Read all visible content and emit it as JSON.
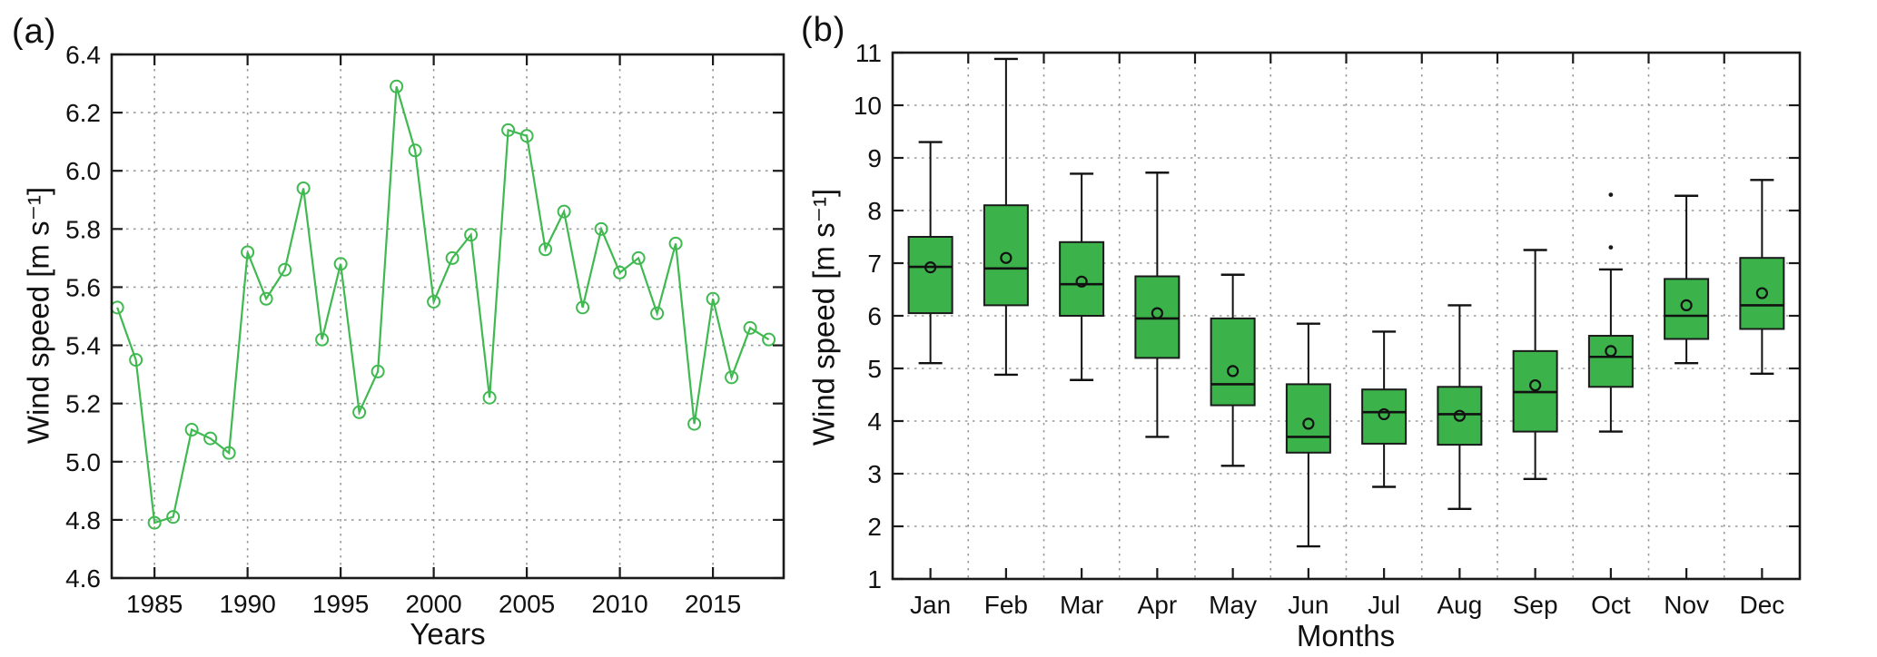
{
  "figure": {
    "background": "#ffffff"
  },
  "panels": {
    "a": {
      "label": "(a)",
      "xlabel": "Years",
      "ylabel": "Wind speed [m s⁻¹]"
    },
    "b": {
      "label": "(b)",
      "xlabel": "Months",
      "ylabel": "Wind speed [m s⁻¹]"
    }
  },
  "chart_data": [
    {
      "type": "line",
      "panel": "a",
      "title": "",
      "xlabel": "Years",
      "ylabel": "Wind speed [m s⁻¹]",
      "x": [
        1983,
        1984,
        1985,
        1986,
        1987,
        1988,
        1989,
        1990,
        1991,
        1992,
        1993,
        1994,
        1995,
        1996,
        1997,
        1998,
        1999,
        2000,
        2001,
        2002,
        2003,
        2004,
        2005,
        2006,
        2007,
        2008,
        2009,
        2010,
        2011,
        2012,
        2013,
        2014,
        2015,
        2016,
        2017,
        2018
      ],
      "values": [
        5.53,
        5.35,
        4.79,
        4.81,
        5.11,
        5.08,
        5.03,
        5.72,
        5.56,
        5.66,
        5.94,
        5.42,
        5.68,
        5.17,
        5.31,
        6.29,
        6.07,
        5.55,
        5.7,
        5.78,
        5.22,
        6.14,
        6.12,
        5.73,
        5.86,
        5.53,
        5.8,
        5.65,
        5.7,
        5.51,
        5.75,
        5.13,
        5.56,
        5.29,
        5.46,
        5.42
      ],
      "xlim": [
        1982.7,
        2018.8
      ],
      "ylim": [
        4.6,
        6.4
      ],
      "xticks": [
        1985,
        1990,
        1995,
        2000,
        2005,
        2010,
        2015
      ],
      "yticks": [
        4.6,
        4.8,
        5.0,
        5.2,
        5.4,
        5.6,
        5.8,
        6.0,
        6.2,
        6.4
      ],
      "ytick_decimals": 1,
      "grid": true,
      "legend": "none",
      "line_color": "#3fb950",
      "marker": "open-circle",
      "marker_color": "#3fb950"
    },
    {
      "type": "box",
      "panel": "b",
      "title": "",
      "xlabel": "Months",
      "ylabel": "Wind speed [m s⁻¹]",
      "categories": [
        "Jan",
        "Feb",
        "Mar",
        "Apr",
        "May",
        "Jun",
        "Jul",
        "Aug",
        "Sep",
        "Oct",
        "Nov",
        "Dec"
      ],
      "boxes": [
        {
          "label": "Jan",
          "whisker_low": 5.1,
          "q1": 6.05,
          "median": 6.93,
          "mean": 6.92,
          "q3": 7.5,
          "whisker_high": 9.3,
          "outliers": []
        },
        {
          "label": "Feb",
          "whisker_low": 4.88,
          "q1": 6.2,
          "median": 6.9,
          "mean": 7.1,
          "q3": 8.1,
          "whisker_high": 10.88,
          "outliers": []
        },
        {
          "label": "Mar",
          "whisker_low": 4.78,
          "q1": 6.0,
          "median": 6.6,
          "mean": 6.65,
          "q3": 7.4,
          "whisker_high": 8.7,
          "outliers": []
        },
        {
          "label": "Apr",
          "whisker_low": 3.7,
          "q1": 5.2,
          "median": 5.95,
          "mean": 6.05,
          "q3": 6.75,
          "whisker_high": 8.72,
          "outliers": []
        },
        {
          "label": "May",
          "whisker_low": 3.15,
          "q1": 4.3,
          "median": 4.7,
          "mean": 4.95,
          "q3": 5.95,
          "whisker_high": 6.78,
          "outliers": []
        },
        {
          "label": "Jun",
          "whisker_low": 1.62,
          "q1": 3.4,
          "median": 3.7,
          "mean": 3.95,
          "q3": 4.7,
          "whisker_high": 5.85,
          "outliers": []
        },
        {
          "label": "Jul",
          "whisker_low": 2.75,
          "q1": 3.57,
          "median": 4.17,
          "mean": 4.13,
          "q3": 4.6,
          "whisker_high": 5.7,
          "outliers": []
        },
        {
          "label": "Aug",
          "whisker_low": 2.33,
          "q1": 3.55,
          "median": 4.13,
          "mean": 4.1,
          "q3": 4.65,
          "whisker_high": 6.2,
          "outliers": []
        },
        {
          "label": "Sep",
          "whisker_low": 2.9,
          "q1": 3.8,
          "median": 4.55,
          "mean": 4.68,
          "q3": 5.33,
          "whisker_high": 7.25,
          "outliers": []
        },
        {
          "label": "Oct",
          "whisker_low": 3.8,
          "q1": 4.65,
          "median": 5.22,
          "mean": 5.33,
          "q3": 5.62,
          "whisker_high": 6.88,
          "outliers": [
            7.3,
            8.3
          ]
        },
        {
          "label": "Nov",
          "whisker_low": 5.1,
          "q1": 5.56,
          "median": 6.0,
          "mean": 6.2,
          "q3": 6.7,
          "whisker_high": 8.28,
          "outliers": []
        },
        {
          "label": "Dec",
          "whisker_low": 4.9,
          "q1": 5.75,
          "median": 6.2,
          "mean": 6.43,
          "q3": 7.1,
          "whisker_high": 8.58,
          "outliers": []
        }
      ],
      "ylim": [
        1,
        11
      ],
      "yticks": [
        1,
        2,
        3,
        4,
        5,
        6,
        7,
        8,
        9,
        10,
        11
      ],
      "grid": true,
      "legend": "none",
      "box_fill": "#3cb34a",
      "box_edge": "#1a1a1a",
      "whisker_style": "solid"
    }
  ]
}
